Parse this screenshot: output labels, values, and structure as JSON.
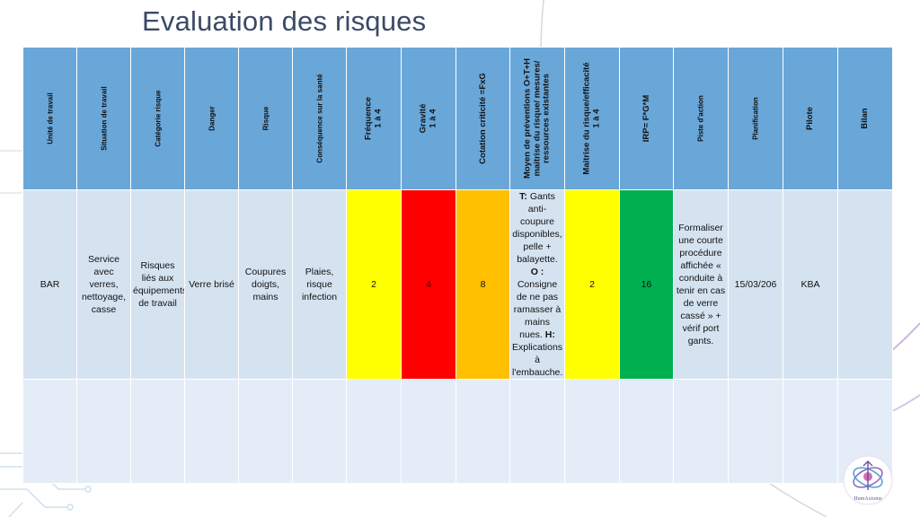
{
  "title": "Evaluation des risques",
  "headers": [
    "Unité de travail",
    "Situation de travail",
    "Catégorie risque",
    "Danger",
    "Risque",
    "Conséquence sur la santé",
    "Fréquence\n1 à 4",
    "Gravité\n1 à 4",
    "Cotation criticité =FxG",
    "Moyen de préventions O+T+H\nmaitrise du risque/ mesures/\nressources existantes",
    "Maitrise du risque/efficacité\n1 à 4",
    "IRP= F*G*M",
    "Piste d'action",
    "Planification",
    "Pilote",
    "Bilan"
  ],
  "row": {
    "unite": "BAR",
    "situation": "Service avec verres, nettoyage, casse",
    "categorie": "Risques liés aux équipements de travail",
    "danger": "Verre brisé",
    "risque": "Coupures doigts, mains",
    "consequence": "Plaies, risque infection",
    "frequence": "2",
    "gravite": "4",
    "cotation": "8",
    "prevention": {
      "t_label": "T:",
      "t_text": " Gants anti-coupure disponibles, pelle + balayette.",
      "o_label": " O :",
      "o_text": " Consigne de ne pas ramasser à mains nues.",
      "h_label": " H:",
      "h_text": " Explications à l'embauche."
    },
    "maitrise": "2",
    "irp": "16",
    "piste": "Formaliser une courte procédure affichée « conduite à tenir en cas de verre cassé » + vérif port gants.",
    "planification": "15/03/206",
    "pilote": "KBA",
    "bilan": ""
  },
  "colors": {
    "header_bg": "#6aa7d9",
    "row_bg": "#d5e3f1",
    "empty_row_bg": "#e4edf7",
    "frequence": "#ffff00",
    "gravite": "#ff0000",
    "cotation": "#ffc000",
    "maitrise": "#ffff00",
    "irp": "#00b050"
  },
  "logo": {
    "icon": "humaxiome-logo-icon",
    "text": "HumAxiome"
  }
}
